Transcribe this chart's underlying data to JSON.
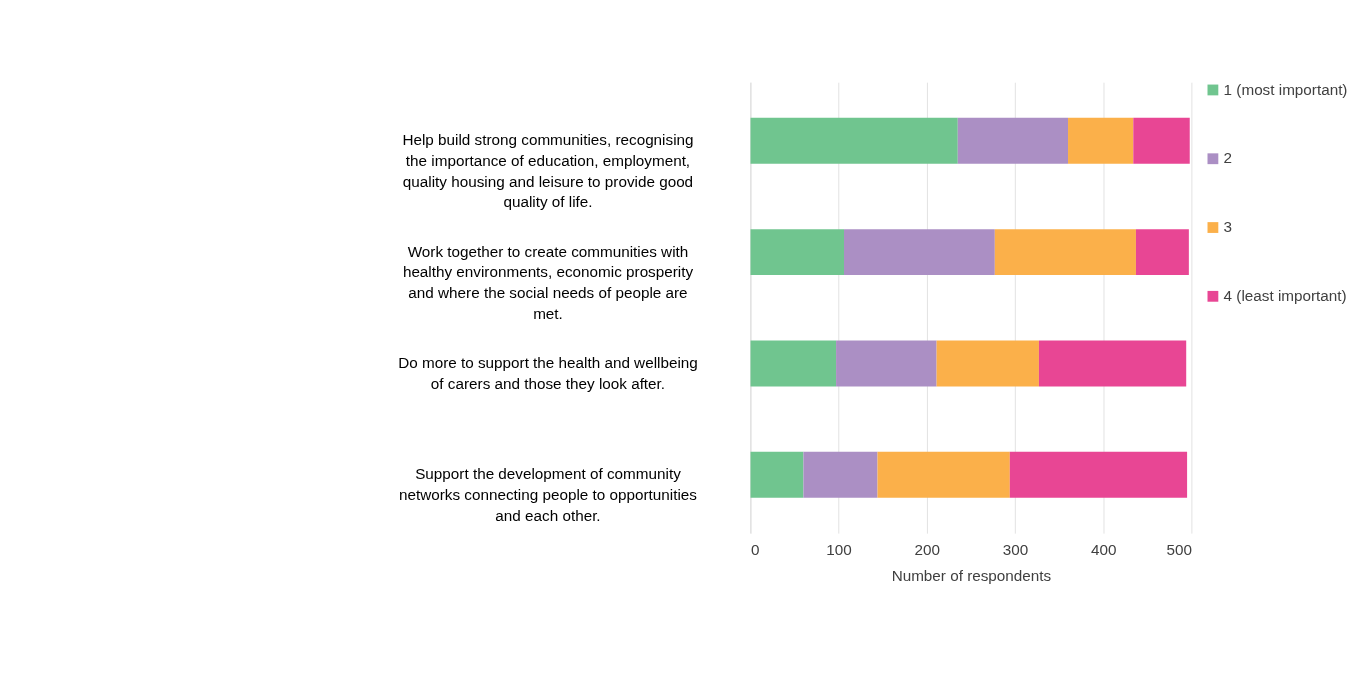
{
  "chart_data": {
    "type": "bar",
    "orientation": "horizontal",
    "stacked": true,
    "xlabel": "Number of respondents",
    "categories": [
      "Help build strong communities, recognising the importance of education, employment, quality housing and leisure to provide good quality of life.",
      "Work together to create communities with healthy environments, economic prosperity and where the social needs of people are met.",
      "Do more to support the health and wellbeing of carers and those they look after.",
      "Support the development of community networks connecting people to opportunities and each other."
    ],
    "series": [
      {
        "name": "1 (most important)",
        "color": "#70c58f",
        "values": [
          235,
          106,
          97,
          60
        ]
      },
      {
        "name": "2",
        "color": "#ab8fc4",
        "values": [
          125,
          171,
          114,
          84
        ]
      },
      {
        "name": "3",
        "color": "#fbb04a",
        "values": [
          74,
          160,
          116,
          150
        ]
      },
      {
        "name": "4 (least important)",
        "color": "#e84694",
        "values": [
          64,
          60,
          167,
          201
        ]
      }
    ],
    "xlim": [
      0,
      500
    ],
    "xticks": [
      0,
      100,
      200,
      300,
      400,
      500
    ],
    "grid": "x",
    "legend": "right"
  }
}
